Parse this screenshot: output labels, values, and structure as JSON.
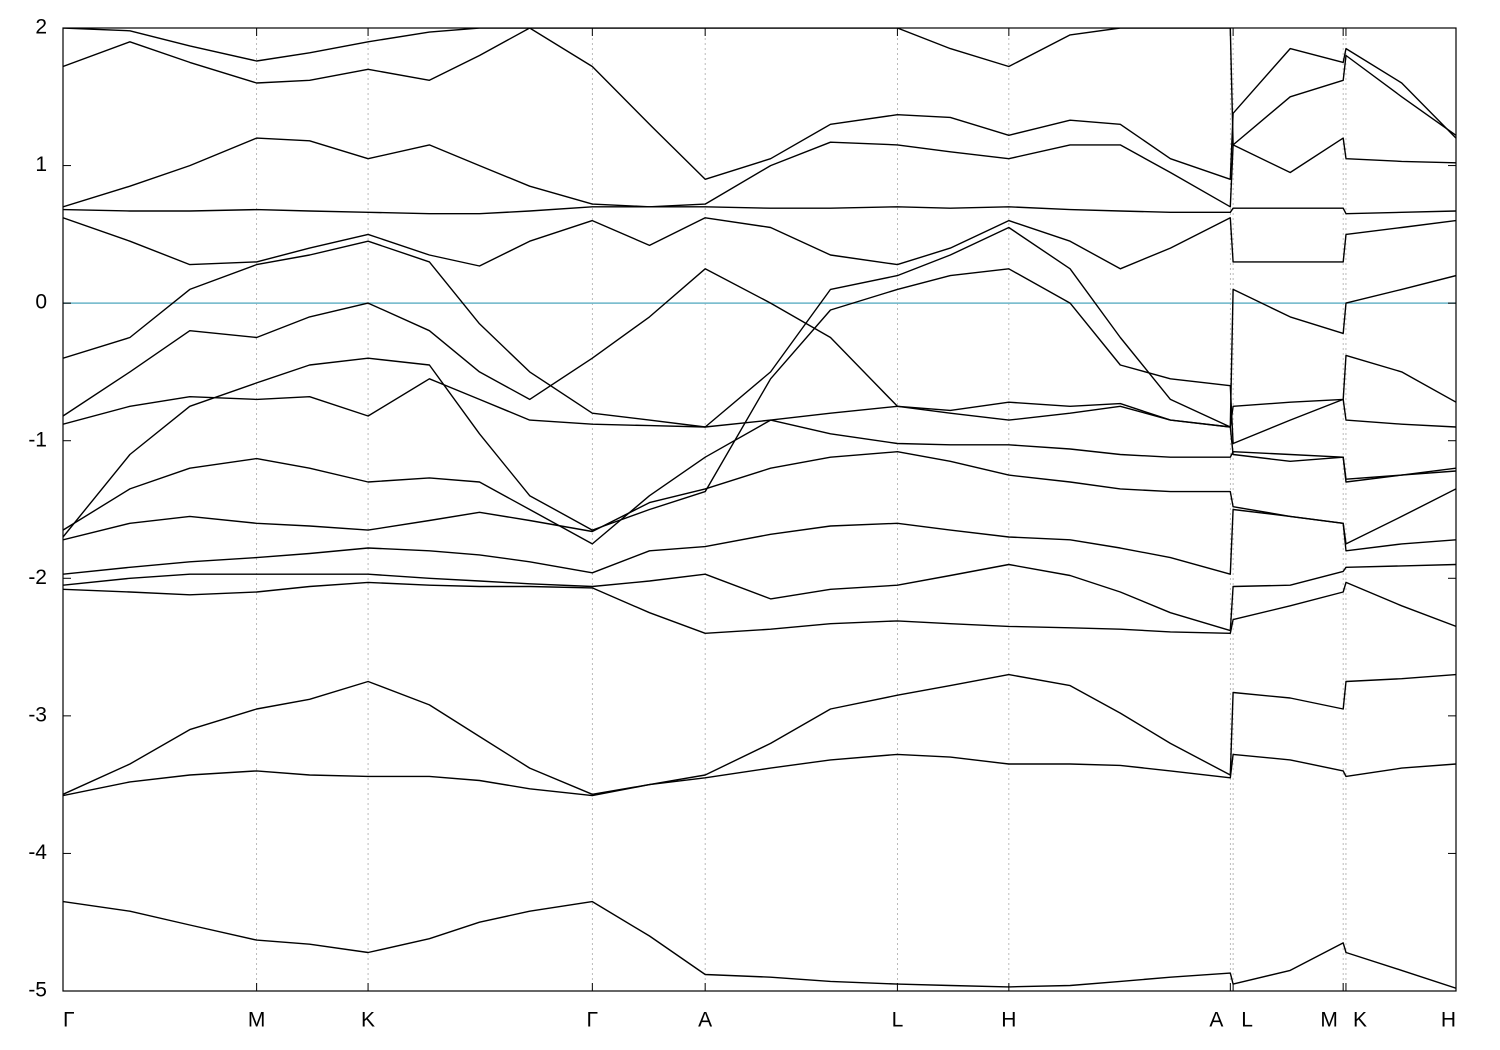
{
  "chart_data": {
    "type": "line",
    "x": [
      0,
      0.048,
      0.091,
      0.139,
      0.177,
      0.219,
      0.263,
      0.299,
      0.335,
      0.38,
      0.421,
      0.461,
      0.508,
      0.551,
      0.599,
      0.637,
      0.679,
      0.723,
      0.759,
      0.795,
      0.838,
      0.84,
      0.881,
      0.919,
      0.921,
      0.961,
      1
    ],
    "xlim": [
      0,
      1
    ],
    "xticks": [
      {
        "value": 0,
        "label": "Γ"
      },
      {
        "value": 0.139,
        "label": "M"
      },
      {
        "value": 0.219,
        "label": "K"
      },
      {
        "value": 0.38,
        "label": "Γ"
      },
      {
        "value": 0.461,
        "label": "A"
      },
      {
        "value": 0.599,
        "label": "L"
      },
      {
        "value": 0.679,
        "label": "H"
      },
      {
        "value": 0.838,
        "label": "A"
      },
      {
        "value": 0.84,
        "label": "L"
      },
      {
        "value": 0.919,
        "label": "M"
      },
      {
        "value": 0.921,
        "label": "K"
      },
      {
        "value": 1,
        "label": "H"
      }
    ],
    "ylim": [
      -5,
      2
    ],
    "yticks": [
      -5,
      -4,
      -3,
      -2,
      -1,
      0,
      1,
      2
    ],
    "grid": true,
    "hlines": [
      {
        "value": 0,
        "color": "#6ab4c8"
      }
    ],
    "series": [
      {
        "color": "#000000",
        "values": [
          -4.35,
          -4.42,
          -4.52,
          -4.63,
          -4.66,
          -4.72,
          -4.62,
          -4.5,
          -4.42,
          -4.35,
          -4.6,
          -4.88,
          -4.9,
          -4.93,
          -4.95,
          -4.96,
          -4.97,
          -4.96,
          -4.93,
          -4.9,
          -4.87,
          -4.95,
          -4.85,
          -4.65,
          -4.72,
          -4.85,
          -4.98
        ]
      },
      {
        "color": "#000000",
        "values": [
          -3.57,
          -3.35,
          -3.1,
          -2.95,
          -2.88,
          -2.75,
          -2.92,
          -3.15,
          -3.38,
          -3.57,
          -3.5,
          -3.43,
          -3.2,
          -2.95,
          -2.85,
          -2.78,
          -2.7,
          -2.78,
          -2.98,
          -3.2,
          -3.43,
          -2.83,
          -2.87,
          -2.95,
          -2.75,
          -2.73,
          -2.7
        ]
      },
      {
        "color": "#000000",
        "values": [
          -3.58,
          -3.48,
          -3.43,
          -3.4,
          -3.43,
          -3.44,
          -3.44,
          -3.47,
          -3.53,
          -3.58,
          -3.5,
          -3.45,
          -3.38,
          -3.32,
          -3.28,
          -3.3,
          -3.35,
          -3.35,
          -3.36,
          -3.4,
          -3.45,
          -3.28,
          -3.32,
          -3.4,
          -3.44,
          -3.38,
          -3.35
        ]
      },
      {
        "color": "#000000",
        "values": [
          -2.08,
          -2.1,
          -2.12,
          -2.1,
          -2.06,
          -2.03,
          -2.05,
          -2.06,
          -2.06,
          -2.07,
          -2.25,
          -2.4,
          -2.37,
          -2.33,
          -2.31,
          -2.33,
          -2.35,
          -2.36,
          -2.37,
          -2.39,
          -2.4,
          -2.3,
          -2.2,
          -2.1,
          -2.03,
          -2.2,
          -2.35
        ]
      },
      {
        "color": "#000000",
        "values": [
          -2.05,
          -2.0,
          -1.97,
          -1.97,
          -1.97,
          -1.97,
          -2.0,
          -2.02,
          -2.04,
          -2.06,
          -2.02,
          -1.97,
          -2.15,
          -2.08,
          -2.05,
          -1.98,
          -1.9,
          -1.98,
          -2.1,
          -2.25,
          -2.38,
          -2.06,
          -2.05,
          -1.95,
          -1.92,
          -1.91,
          -1.9
        ]
      },
      {
        "color": "#000000",
        "values": [
          -1.97,
          -1.92,
          -1.88,
          -1.85,
          -1.82,
          -1.78,
          -1.8,
          -1.83,
          -1.88,
          -1.96,
          -1.8,
          -1.77,
          -1.68,
          -1.62,
          -1.6,
          -1.65,
          -1.7,
          -1.72,
          -1.78,
          -1.85,
          -1.97,
          -1.5,
          -1.55,
          -1.6,
          -1.8,
          -1.75,
          -1.72
        ]
      },
      {
        "color": "#000000",
        "values": [
          -1.72,
          -1.6,
          -1.55,
          -1.6,
          -1.62,
          -1.65,
          -1.58,
          -1.52,
          -1.58,
          -1.66,
          -1.45,
          -1.35,
          -1.2,
          -1.12,
          -1.08,
          -1.15,
          -1.25,
          -1.3,
          -1.35,
          -1.37,
          -1.37,
          -1.48,
          -1.55,
          -1.6,
          -1.75,
          -1.55,
          -1.35
        ]
      },
      {
        "color": "#000000",
        "values": [
          -1.65,
          -1.35,
          -1.2,
          -1.13,
          -1.2,
          -1.3,
          -1.27,
          -1.3,
          -1.5,
          -1.75,
          -1.4,
          -1.12,
          -0.85,
          -0.95,
          -1.02,
          -1.03,
          -1.03,
          -1.06,
          -1.1,
          -1.12,
          -1.12,
          -1.08,
          -1.1,
          -1.12,
          -1.28,
          -1.25,
          -1.22
        ]
      },
      {
        "color": "#000000",
        "values": [
          -0.88,
          -0.75,
          -0.68,
          -0.7,
          -0.68,
          -0.82,
          -0.55,
          -0.7,
          -0.85,
          -0.88,
          -0.89,
          -0.9,
          -0.85,
          -0.8,
          -0.75,
          -0.8,
          -0.85,
          -0.8,
          -0.75,
          -0.85,
          -0.9,
          -0.75,
          -0.72,
          -0.7,
          -0.85,
          -0.88,
          -0.9
        ]
      },
      {
        "color": "#000000",
        "values": [
          -1.7,
          -1.1,
          -0.75,
          -0.58,
          -0.45,
          -0.4,
          -0.45,
          -0.95,
          -1.4,
          -1.65,
          -1.5,
          -1.37,
          -0.55,
          -0.05,
          0.1,
          0.2,
          0.25,
          0.0,
          -0.45,
          -0.55,
          -0.6,
          -1.02,
          -0.85,
          -0.7,
          -0.38,
          -0.5,
          -0.72
        ]
      },
      {
        "color": "#000000",
        "values": [
          -0.4,
          -0.25,
          0.1,
          0.28,
          0.35,
          0.45,
          0.3,
          -0.15,
          -0.5,
          -0.8,
          -0.85,
          -0.9,
          -0.5,
          0.1,
          0.2,
          0.35,
          0.55,
          0.25,
          -0.25,
          -0.7,
          -0.9,
          0.1,
          -0.1,
          -0.22,
          0.0,
          0.1,
          0.2
        ]
      },
      {
        "color": "#000000",
        "values": [
          0.62,
          0.45,
          0.28,
          0.3,
          0.4,
          0.5,
          0.35,
          0.27,
          0.45,
          0.6,
          0.42,
          0.62,
          0.55,
          0.35,
          0.28,
          0.4,
          0.6,
          0.45,
          0.25,
          0.4,
          0.62,
          0.3,
          0.3,
          0.3,
          0.5,
          0.55,
          0.6
        ]
      },
      {
        "color": "#000000",
        "values": [
          -0.82,
          -0.5,
          -0.2,
          -0.25,
          -0.1,
          0.0,
          -0.2,
          -0.5,
          -0.7,
          -0.4,
          -0.1,
          0.25,
          0.0,
          -0.25,
          -0.75,
          -0.78,
          -0.72,
          -0.75,
          -0.73,
          -0.85,
          -0.9,
          -1.1,
          -1.15,
          -1.12,
          -1.3,
          -1.25,
          -1.2
        ]
      },
      {
        "color": "#000000",
        "values": [
          0.68,
          0.67,
          0.67,
          0.68,
          0.67,
          0.66,
          0.65,
          0.65,
          0.67,
          0.7,
          0.7,
          0.7,
          0.69,
          0.69,
          0.7,
          0.69,
          0.7,
          0.68,
          0.67,
          0.66,
          0.66,
          0.69,
          0.69,
          0.69,
          0.65,
          0.66,
          0.67
        ]
      },
      {
        "color": "#000000",
        "values": [
          0.7,
          0.85,
          1.0,
          1.2,
          1.18,
          1.05,
          1.15,
          1.0,
          0.85,
          0.72,
          0.7,
          0.72,
          1.0,
          1.17,
          1.15,
          1.1,
          1.05,
          1.15,
          1.15,
          0.95,
          0.7,
          1.15,
          0.95,
          1.2,
          1.05,
          1.03,
          1.02
        ]
      },
      {
        "color": "#000000",
        "values": [
          1.72,
          1.9,
          1.75,
          1.6,
          1.62,
          1.7,
          1.62,
          1.8,
          2.0,
          1.72,
          1.3,
          0.9,
          1.05,
          1.3,
          1.37,
          1.35,
          1.22,
          1.33,
          1.3,
          1.05,
          0.9,
          1.38,
          1.85,
          1.75,
          1.85,
          1.6,
          1.2
        ]
      },
      {
        "color": "#000000",
        "values": [
          2.0,
          1.98,
          1.87,
          1.76,
          1.82,
          1.9,
          1.97,
          2.0,
          2.0,
          2.0,
          2.0,
          2.0,
          2.0,
          2.0,
          2.0,
          1.85,
          1.72,
          1.95,
          2.0,
          2.0,
          2.0,
          1.15,
          1.5,
          1.62,
          1.8,
          1.5,
          1.22
        ]
      }
    ]
  }
}
